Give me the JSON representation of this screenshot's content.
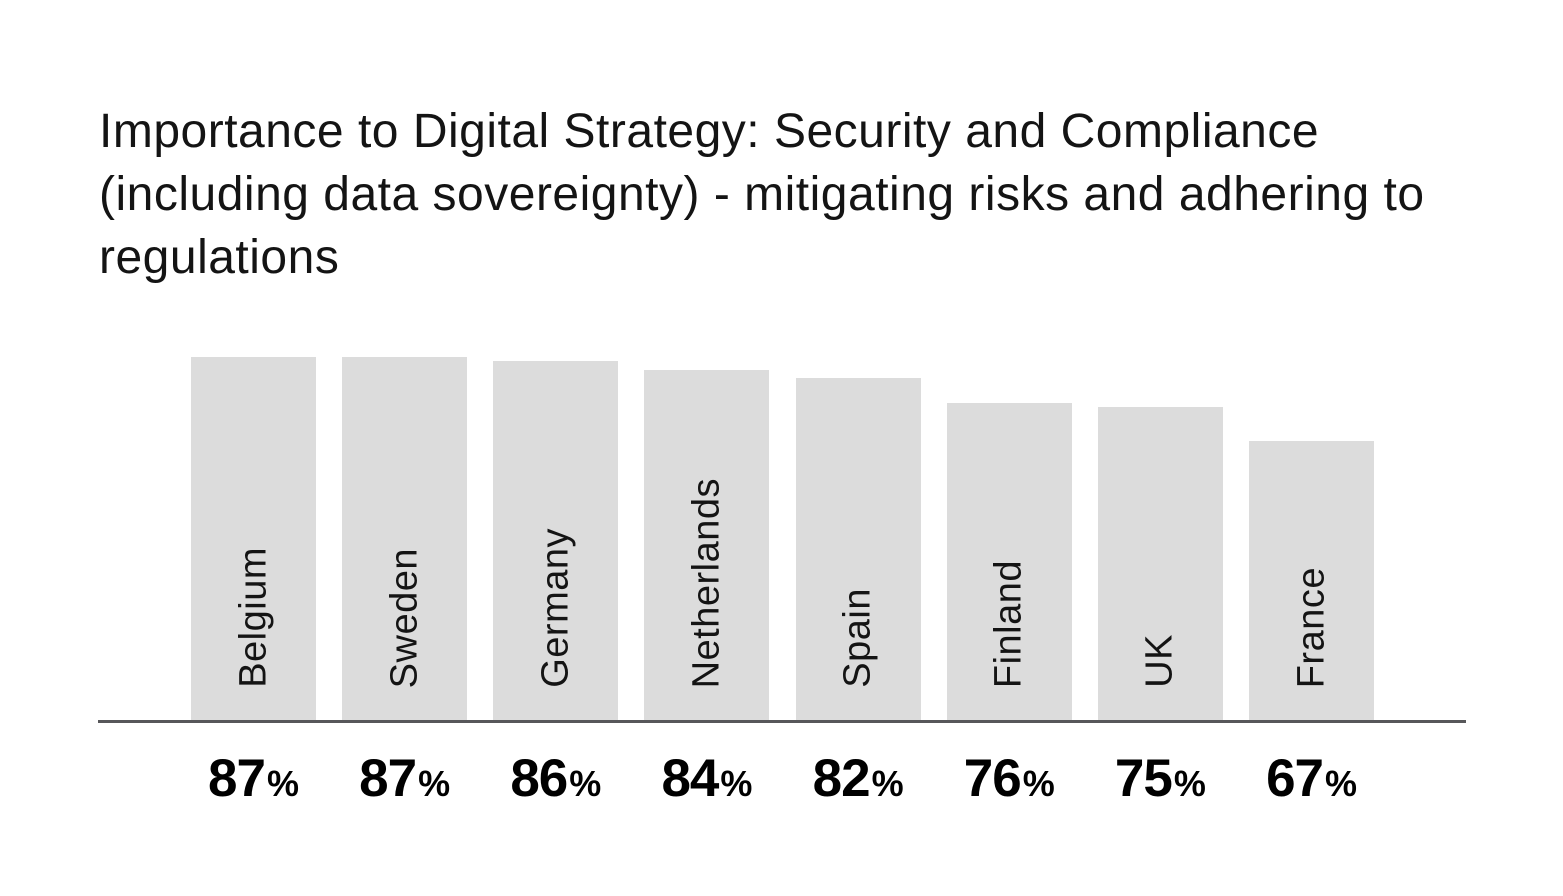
{
  "title": "Importance to Digital Strategy: Security and Compliance (including data sovereignty) - mitigating risks and adhering to regulations",
  "chart_data": {
    "type": "bar",
    "title": "Importance to Digital Strategy: Security and Compliance (including data sovereignty) - mitigating risks and adhering to regulations",
    "categories": [
      "Belgium",
      "Sweden",
      "Germany",
      "Netherlands",
      "Spain",
      "Finland",
      "UK",
      "France"
    ],
    "values": [
      87,
      87,
      86,
      84,
      82,
      76,
      75,
      67
    ],
    "value_labels": [
      "87",
      "87",
      "86",
      "84",
      "82",
      "76",
      "75",
      "67"
    ],
    "unit": "%",
    "xlabel": "",
    "ylabel": "",
    "ylim": [
      0,
      100
    ],
    "grid": false,
    "legend": false,
    "category_label_style": "rotated-90-inside-bar-bottom",
    "value_label_style": "bold-below-axis",
    "colors": {
      "bar_fill": "#dcdcdc",
      "axis_line": "#57575a",
      "title_text": "#141414",
      "category_text": "#141414",
      "value_text": "#000000",
      "background": "#ffffff"
    }
  }
}
